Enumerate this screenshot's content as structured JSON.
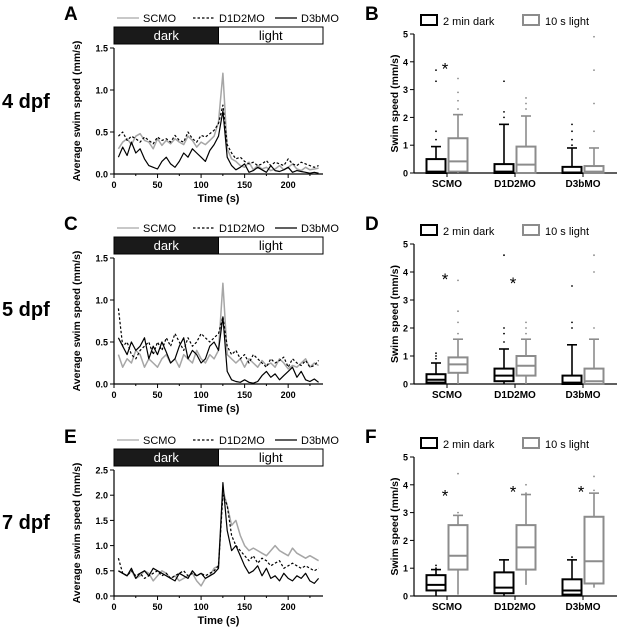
{
  "figure": {
    "row_labels": [
      "4 dpf",
      "5 dpf",
      "7 dpf"
    ],
    "panel_letters": [
      "A",
      "B",
      "C",
      "D",
      "E",
      "F"
    ]
  },
  "colors": {
    "scmo": "#a6a6a6",
    "d1d2mo": "#000000",
    "d3bmo": "#000000",
    "dark_bar": "#1a1a1a",
    "box_dark": "#000000",
    "box_light": "#8c8c8c"
  },
  "chart_data": [
    {
      "panel": "A",
      "type": "line",
      "ylabel": "Average swim speed (mm/s)",
      "xlabel": "Time (s)",
      "xlim": [
        0,
        240
      ],
      "ylim": [
        0,
        1.5
      ],
      "xticks": [
        0,
        50,
        100,
        150,
        200
      ],
      "yticks": [
        0.0,
        0.5,
        1.0,
        1.5
      ],
      "tick_labels_y": [
        "0.0",
        "0.5",
        "1.0",
        "1.5"
      ],
      "phase_labels": [
        "dark",
        "light"
      ],
      "phase_boundary": 120,
      "x": [
        5,
        10,
        15,
        20,
        25,
        30,
        35,
        40,
        45,
        50,
        55,
        60,
        65,
        70,
        75,
        80,
        85,
        90,
        95,
        100,
        105,
        110,
        115,
        120,
        125,
        130,
        135,
        140,
        145,
        150,
        155,
        160,
        165,
        170,
        175,
        180,
        185,
        190,
        195,
        200,
        205,
        210,
        215,
        220,
        225,
        230,
        235
      ],
      "series": [
        {
          "name": "SCMO",
          "style": "solid-gray",
          "values": [
            0.3,
            0.38,
            0.42,
            0.35,
            0.45,
            0.48,
            0.4,
            0.38,
            0.3,
            0.42,
            0.34,
            0.4,
            0.36,
            0.42,
            0.38,
            0.35,
            0.45,
            0.4,
            0.32,
            0.38,
            0.35,
            0.4,
            0.45,
            0.62,
            1.2,
            0.3,
            0.18,
            0.15,
            0.1,
            0.08,
            0.14,
            0.05,
            0.1,
            0.06,
            0.08,
            0.04,
            0.06,
            0.1,
            0.05,
            0.08,
            0.12,
            0.06,
            0.04,
            0.08,
            0.05,
            0.06,
            0.07
          ]
        },
        {
          "name": "D1D2MO",
          "style": "dashed",
          "values": [
            0.45,
            0.5,
            0.4,
            0.45,
            0.42,
            0.38,
            0.44,
            0.4,
            0.36,
            0.44,
            0.4,
            0.42,
            0.38,
            0.46,
            0.4,
            0.38,
            0.5,
            0.42,
            0.38,
            0.46,
            0.44,
            0.48,
            0.52,
            0.6,
            0.82,
            0.35,
            0.25,
            0.18,
            0.2,
            0.15,
            0.12,
            0.14,
            0.1,
            0.12,
            0.16,
            0.1,
            0.14,
            0.12,
            0.1,
            0.18,
            0.12,
            0.1,
            0.14,
            0.12,
            0.1,
            0.08,
            0.1
          ]
        },
        {
          "name": "D3bMO",
          "style": "solid-black",
          "values": [
            0.2,
            0.32,
            0.22,
            0.38,
            0.25,
            0.3,
            0.18,
            0.1,
            0.08,
            0.06,
            0.15,
            0.2,
            0.12,
            0.08,
            0.15,
            0.25,
            0.2,
            0.3,
            0.25,
            0.2,
            0.15,
            0.28,
            0.35,
            0.45,
            0.75,
            0.2,
            0.1,
            0.05,
            0.08,
            0.12,
            0.02,
            0.04,
            0.08,
            0.05,
            0.02,
            0.1,
            0.04,
            0.03,
            0.05,
            0.08,
            0.02,
            0.04,
            0.03,
            0.02,
            0.01,
            0.02,
            0.01
          ]
        }
      ]
    },
    {
      "panel": "B",
      "type": "box",
      "ylabel": "Swim speed (mm/s)",
      "ylim": [
        0,
        5
      ],
      "yticks": [
        0,
        1,
        2,
        3,
        4,
        5
      ],
      "categories": [
        "SCMO",
        "D1D2MO",
        "D3bMO"
      ],
      "legend": [
        "2 min dark",
        "10 s light"
      ],
      "groups": [
        {
          "name": "2 min dark",
          "boxes": [
            [
              0,
              0,
              0.05,
              0.5,
              0.95
            ],
            [
              0,
              0,
              0.05,
              0.32,
              1.75
            ],
            [
              0,
              0,
              0.02,
              0.22,
              0.9
            ]
          ],
          "outliers": [
            [
              1.2,
              1.5,
              3.3,
              3.7
            ],
            [
              2.0,
              2.2,
              3.3
            ],
            [
              1.0,
              1.2,
              1.5,
              1.75
            ]
          ]
        },
        {
          "name": "10 s light",
          "boxes": [
            [
              0,
              0.05,
              0.42,
              1.25,
              2.1
            ],
            [
              0,
              0,
              0.3,
              0.95,
              2.05
            ],
            [
              0,
              0,
              0.05,
              0.25,
              0.9
            ]
          ],
          "outliers": [
            [
              2.3,
              2.6,
              2.9,
              3.4
            ],
            [
              2.3,
              2.5,
              2.7
            ],
            [
              1.5,
              2.5,
              3.7,
              4.9
            ]
          ]
        }
      ],
      "significance": [
        "*",
        "",
        ""
      ]
    },
    {
      "panel": "C",
      "type": "line",
      "ylabel": "Average swim speed (mm/s)",
      "xlabel": "Time (s)",
      "xlim": [
        0,
        240
      ],
      "ylim": [
        0,
        1.5
      ],
      "xticks": [
        0,
        50,
        100,
        150,
        200
      ],
      "yticks": [
        0.0,
        0.5,
        1.0,
        1.5
      ],
      "tick_labels_y": [
        "0.0",
        "0.5",
        "1.0",
        "1.5"
      ],
      "phase_labels": [
        "dark",
        "light"
      ],
      "phase_boundary": 120,
      "x": [
        5,
        10,
        15,
        20,
        25,
        30,
        35,
        40,
        45,
        50,
        55,
        60,
        65,
        70,
        75,
        80,
        85,
        90,
        95,
        100,
        105,
        110,
        115,
        120,
        125,
        130,
        135,
        140,
        145,
        150,
        155,
        160,
        165,
        170,
        175,
        180,
        185,
        190,
        195,
        200,
        205,
        210,
        215,
        220,
        225,
        230,
        235
      ],
      "series": [
        {
          "name": "SCMO",
          "style": "solid-gray",
          "values": [
            0.35,
            0.2,
            0.3,
            0.25,
            0.4,
            0.35,
            0.2,
            0.3,
            0.25,
            0.2,
            0.3,
            0.35,
            0.25,
            0.3,
            0.2,
            0.35,
            0.3,
            0.25,
            0.4,
            0.3,
            0.25,
            0.35,
            0.3,
            0.4,
            1.2,
            0.35,
            0.3,
            0.25,
            0.3,
            0.2,
            0.3,
            0.25,
            0.2,
            0.28,
            0.22,
            0.25,
            0.2,
            0.3,
            0.25,
            0.18,
            0.22,
            0.2,
            0.25,
            0.3,
            0.2,
            0.25,
            0.22
          ]
        },
        {
          "name": "D1D2MO",
          "style": "dashed",
          "values": [
            0.9,
            0.45,
            0.5,
            0.35,
            0.3,
            0.4,
            0.45,
            0.5,
            0.35,
            0.5,
            0.4,
            0.55,
            0.45,
            0.6,
            0.5,
            0.4,
            0.55,
            0.45,
            0.5,
            0.6,
            0.55,
            0.5,
            0.55,
            0.6,
            0.8,
            0.45,
            0.35,
            0.4,
            0.3,
            0.35,
            0.25,
            0.35,
            0.3,
            0.25,
            0.2,
            0.3,
            0.25,
            0.28,
            0.32,
            0.2,
            0.3,
            0.25,
            0.22,
            0.28,
            0.2,
            0.22,
            0.28
          ]
        },
        {
          "name": "D3bMO",
          "style": "solid-black",
          "values": [
            0.55,
            0.45,
            0.35,
            0.5,
            0.4,
            0.45,
            0.55,
            0.3,
            0.45,
            0.35,
            0.5,
            0.38,
            0.25,
            0.3,
            0.45,
            0.55,
            0.3,
            0.4,
            0.35,
            0.25,
            0.3,
            0.45,
            0.5,
            0.4,
            0.8,
            0.15,
            0.05,
            0.03,
            0.02,
            0.05,
            0.02,
            0.01,
            0.03,
            0.1,
            0.15,
            0.08,
            0.12,
            0.05,
            0.1,
            0.15,
            0.2,
            0.08,
            0.15,
            0.05,
            0.03,
            0.06,
            0.02
          ]
        }
      ]
    },
    {
      "panel": "D",
      "type": "box",
      "ylabel": "Swim speed (mm/s)",
      "ylim": [
        0,
        5
      ],
      "yticks": [
        0,
        1,
        2,
        3,
        4,
        5
      ],
      "categories": [
        "SCMO",
        "D1D2MO",
        "D3bMO"
      ],
      "legend": [
        "2 min dark",
        "10 s light"
      ],
      "groups": [
        {
          "name": "2 min dark",
          "boxes": [
            [
              0,
              0.05,
              0.15,
              0.35,
              0.75
            ],
            [
              0,
              0.1,
              0.3,
              0.55,
              1.25
            ],
            [
              0,
              0,
              0.05,
              0.3,
              1.4
            ]
          ],
          "outliers": [
            [
              0.9,
              1.0,
              1.1
            ],
            [
              1.5,
              1.8,
              2.0,
              4.6
            ],
            [
              2.0,
              2.2,
              3.5
            ]
          ]
        },
        {
          "name": "10 s light",
          "boxes": [
            [
              0,
              0.4,
              0.7,
              0.95,
              1.6
            ],
            [
              0,
              0.3,
              0.65,
              1.0,
              1.6
            ],
            [
              0,
              0,
              0.1,
              0.55,
              1.6
            ]
          ],
          "outliers": [
            [
              1.8,
              2.2,
              2.6,
              3.7
            ],
            [
              1.8,
              2.0,
              2.2
            ],
            [
              2.0,
              4.0,
              4.6
            ]
          ]
        }
      ],
      "significance": [
        "*",
        "*",
        ""
      ]
    },
    {
      "panel": "E",
      "type": "line",
      "ylabel": "Average swim speed (mm/s)",
      "xlabel": "Time (s)",
      "xlim": [
        0,
        240
      ],
      "ylim": [
        0,
        2.5
      ],
      "xticks": [
        0,
        50,
        100,
        150,
        200
      ],
      "yticks": [
        0.0,
        0.5,
        1.0,
        1.5,
        2.0,
        2.5
      ],
      "tick_labels_y": [
        "0.0",
        "0.5",
        "1.0",
        "1.5",
        "2.0",
        "2.5"
      ],
      "phase_labels": [
        "dark",
        "light"
      ],
      "phase_boundary": 120,
      "x": [
        5,
        10,
        15,
        20,
        25,
        30,
        35,
        40,
        45,
        50,
        55,
        60,
        65,
        70,
        75,
        80,
        85,
        90,
        95,
        100,
        105,
        110,
        115,
        120,
        125,
        130,
        135,
        140,
        145,
        150,
        155,
        160,
        165,
        170,
        175,
        180,
        185,
        190,
        195,
        200,
        205,
        210,
        215,
        220,
        225,
        230,
        235
      ],
      "series": [
        {
          "name": "SCMO",
          "style": "solid-gray",
          "values": [
            0.5,
            0.45,
            0.4,
            0.5,
            0.35,
            0.4,
            0.5,
            0.45,
            0.3,
            0.4,
            0.5,
            0.45,
            0.35,
            0.4,
            0.3,
            0.35,
            0.4,
            0.45,
            0.3,
            0.2,
            0.35,
            0.4,
            0.55,
            0.6,
            2.1,
            1.8,
            1.4,
            1.5,
            1.2,
            1.0,
            0.9,
            0.95,
            0.9,
            0.85,
            0.8,
            0.9,
            1.0,
            0.9,
            0.85,
            0.8,
            0.95,
            0.85,
            0.8,
            0.75,
            0.8,
            0.75,
            0.7
          ]
        },
        {
          "name": "D1D2MO",
          "style": "dashed",
          "values": [
            0.75,
            0.45,
            0.4,
            0.5,
            0.4,
            0.45,
            0.35,
            0.4,
            0.45,
            0.5,
            0.4,
            0.45,
            0.35,
            0.4,
            0.45,
            0.5,
            0.4,
            0.45,
            0.4,
            0.45,
            0.4,
            0.45,
            0.5,
            0.6,
            2.0,
            1.8,
            1.2,
            1.0,
            0.9,
            0.8,
            0.7,
            0.8,
            0.65,
            0.75,
            0.7,
            0.6,
            0.65,
            0.7,
            0.55,
            0.6,
            0.65,
            0.6,
            0.55,
            0.6,
            0.55,
            0.5,
            0.55
          ]
        },
        {
          "name": "D3bMO",
          "style": "solid-black",
          "values": [
            0.5,
            0.45,
            0.4,
            0.55,
            0.35,
            0.45,
            0.5,
            0.4,
            0.55,
            0.5,
            0.45,
            0.4,
            0.35,
            0.3,
            0.45,
            0.4,
            0.35,
            0.5,
            0.4,
            0.45,
            0.35,
            0.4,
            0.45,
            0.55,
            2.25,
            1.3,
            0.9,
            1.0,
            0.8,
            0.6,
            0.45,
            0.5,
            0.6,
            0.4,
            0.55,
            0.35,
            0.4,
            0.3,
            0.45,
            0.35,
            0.3,
            0.4,
            0.35,
            0.45,
            0.3,
            0.25,
            0.35
          ]
        }
      ]
    },
    {
      "panel": "F",
      "type": "box",
      "ylabel": "Swim speed (mm/s)",
      "ylim": [
        0,
        5
      ],
      "yticks": [
        0,
        1,
        2,
        3,
        4,
        5
      ],
      "categories": [
        "SCMO",
        "D1D2MO",
        "D3bMO"
      ],
      "legend": [
        "2 min dark",
        "10 s light"
      ],
      "groups": [
        {
          "name": "2 min dark",
          "boxes": [
            [
              0,
              0.2,
              0.4,
              0.75,
              0.95
            ],
            [
              0,
              0.1,
              0.3,
              0.85,
              1.3
            ],
            [
              0,
              0.05,
              0.2,
              0.6,
              1.3
            ]
          ],
          "outliers": [
            [
              1.0,
              1.1
            ],
            [
              1.3
            ],
            [
              1.4
            ]
          ]
        },
        {
          "name": "10 s light",
          "boxes": [
            [
              0.05,
              0.95,
              1.45,
              2.55,
              2.9
            ],
            [
              0.4,
              0.95,
              1.75,
              2.55,
              3.65
            ],
            [
              0.3,
              0.45,
              1.25,
              2.85,
              3.7
            ]
          ],
          "outliers": [
            [
              3.0,
              4.4
            ],
            [
              3.7,
              4.0
            ],
            [
              3.8,
              4.3
            ]
          ]
        }
      ],
      "significance": [
        "*",
        "*",
        "*"
      ]
    }
  ]
}
